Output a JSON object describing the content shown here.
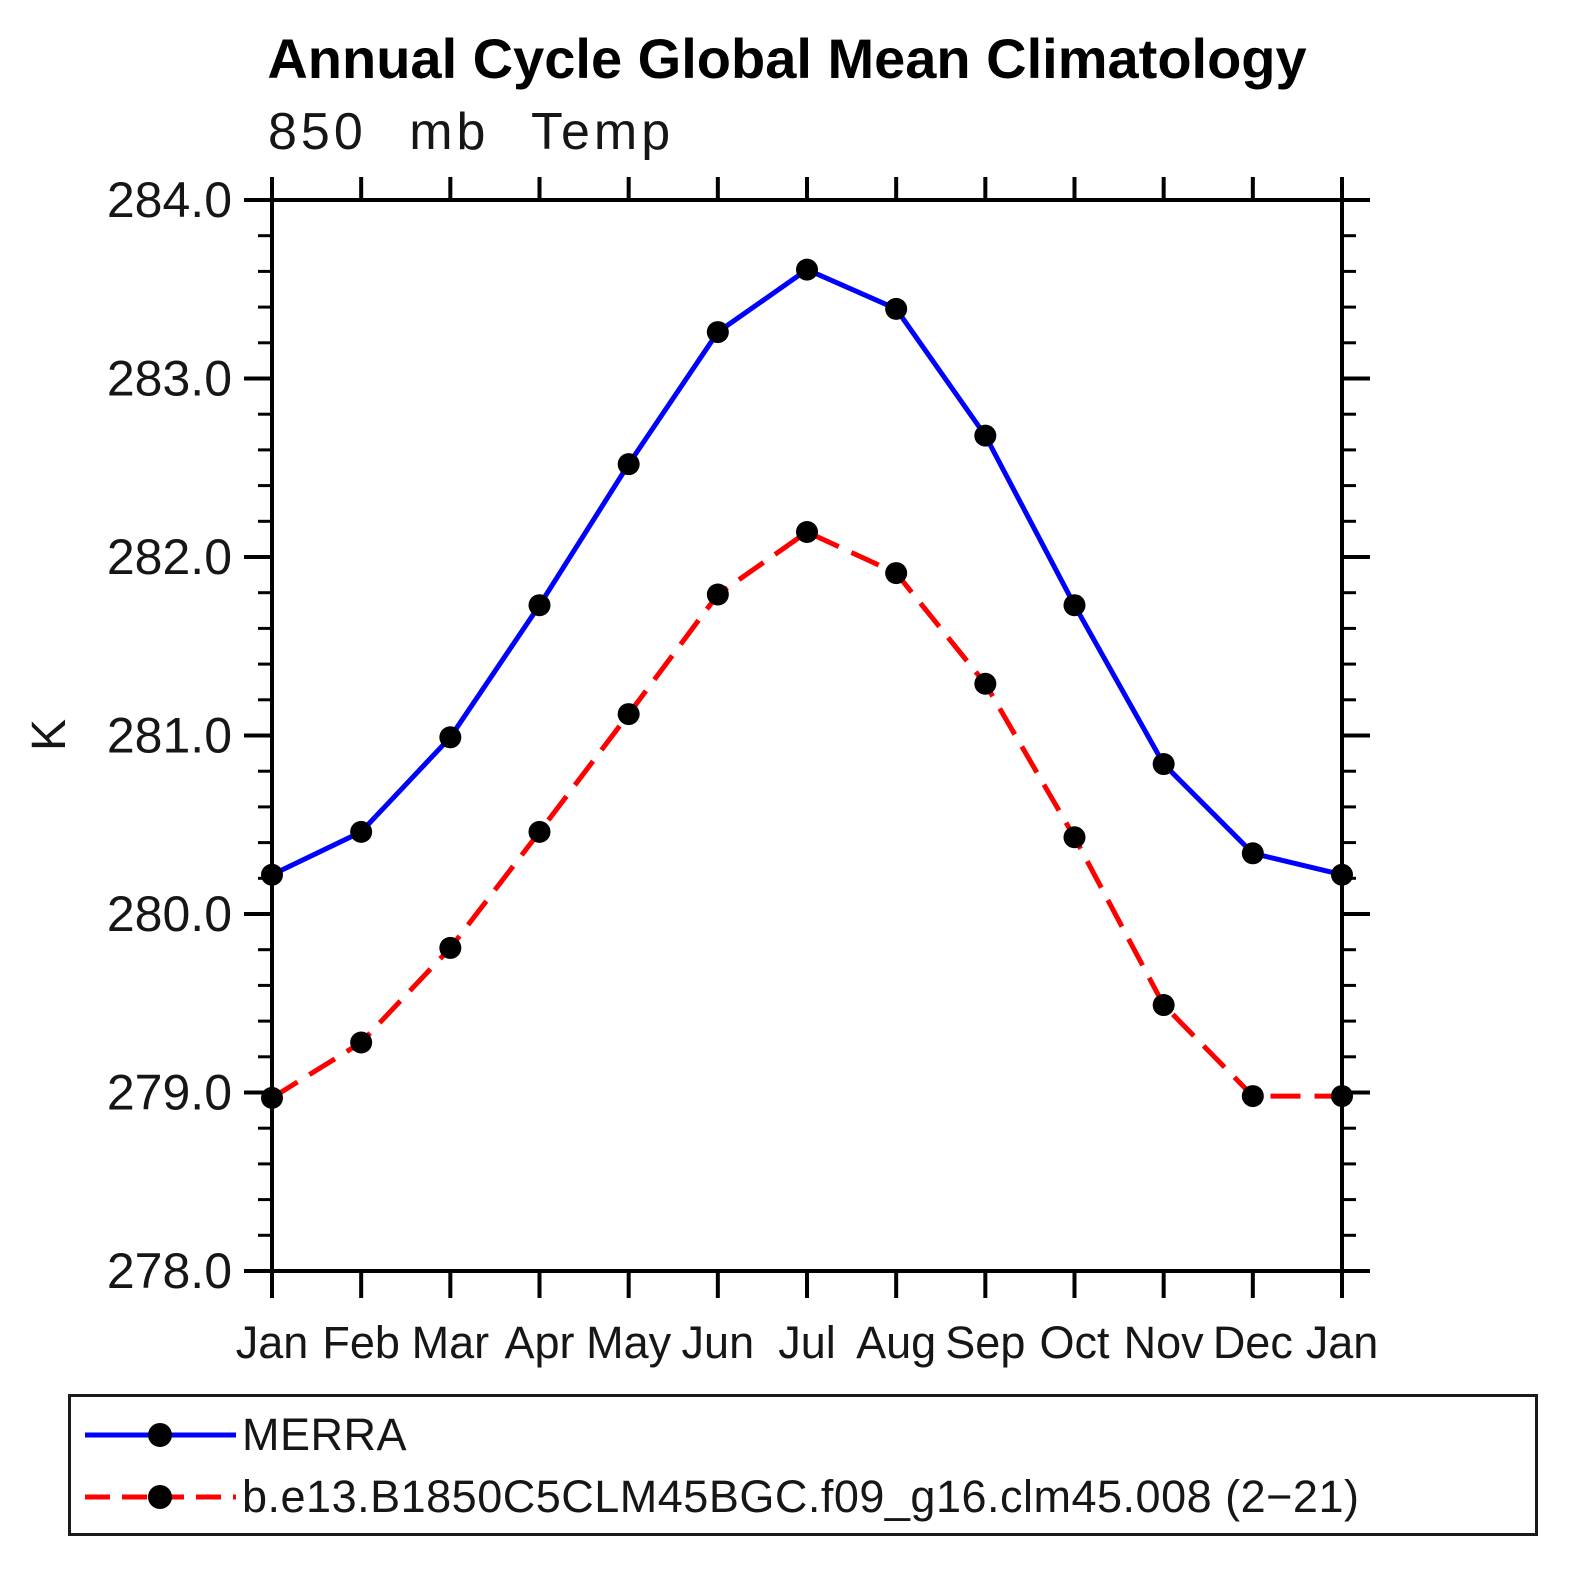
{
  "header": {
    "title": "Annual Cycle Global Mean Climatology",
    "subtitle": "850 mb Temp"
  },
  "axes": {
    "y_label": "K",
    "y_tick_labels": [
      "278.0",
      "279.0",
      "280.0",
      "281.0",
      "282.0",
      "283.0",
      "284.0"
    ],
    "x_tick_labels": [
      "Jan",
      "Feb",
      "Mar",
      "Apr",
      "May",
      "Jun",
      "Jul",
      "Aug",
      "Sep",
      "Oct",
      "Nov",
      "Dec",
      "Jan"
    ]
  },
  "chart_data": {
    "type": "line",
    "title": "Annual Cycle Global Mean Climatology",
    "subtitle": "850 mb Temp",
    "xlabel": "",
    "ylabel": "K",
    "ylim": [
      278.0,
      284.0
    ],
    "y_major_step": 1.0,
    "y_minor_step": 0.2,
    "grid": false,
    "legend_position": "bottom",
    "categories": [
      "Jan",
      "Feb",
      "Mar",
      "Apr",
      "May",
      "Jun",
      "Jul",
      "Aug",
      "Sep",
      "Oct",
      "Nov",
      "Dec",
      "Jan"
    ],
    "series": [
      {
        "name": "MERRA",
        "color": "#0000ff",
        "line_style": "solid",
        "marker": "filled-circle",
        "marker_color": "#000000",
        "values": [
          280.22,
          280.46,
          280.99,
          281.73,
          282.52,
          283.26,
          283.61,
          283.39,
          282.68,
          281.73,
          280.84,
          280.34,
          280.22
        ]
      },
      {
        "name": "b.e13.B1850C5CLM45BGC.f09_g16.clm45.008 (2−21)",
        "color": "#ff0000",
        "line_style": "dashed",
        "marker": "filled-circle",
        "marker_color": "#000000",
        "values": [
          278.97,
          279.28,
          279.81,
          280.46,
          281.12,
          281.79,
          282.14,
          281.91,
          281.29,
          280.43,
          279.49,
          278.98,
          278.98
        ]
      }
    ]
  }
}
